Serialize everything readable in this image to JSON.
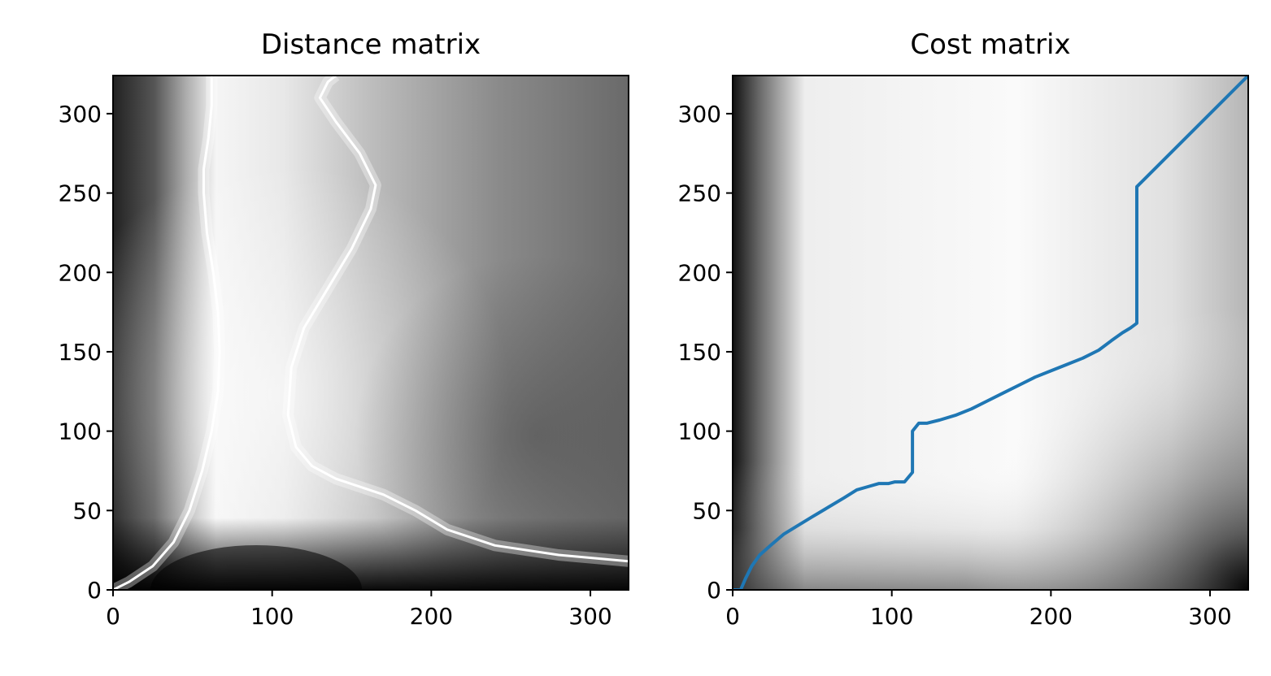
{
  "chart_data": [
    {
      "type": "heatmap",
      "title": "Distance matrix",
      "colormap": "gray",
      "xlim": [
        0,
        324
      ],
      "ylim": [
        0,
        324
      ],
      "xticks": [
        0,
        100,
        200,
        300
      ],
      "yticks": [
        0,
        50,
        100,
        150,
        200,
        250,
        300
      ],
      "xticklabels": [
        "0",
        "100",
        "200",
        "300"
      ],
      "yticklabels": [
        "0",
        "50",
        "100",
        "150",
        "200",
        "250",
        "300"
      ],
      "zero_distance_curves": [
        {
          "x": [
            0,
            10,
            25,
            38,
            48,
            56,
            62,
            66,
            67,
            66,
            63,
            59,
            57,
            57,
            60,
            62,
            62
          ],
          "y": [
            0,
            5,
            15,
            30,
            50,
            75,
            100,
            125,
            150,
            175,
            200,
            225,
            250,
            265,
            285,
            305,
            324
          ]
        },
        {
          "x": [
            324,
            280,
            240,
            210,
            190,
            170,
            140,
            125,
            115,
            110,
            112,
            120,
            135,
            150,
            162,
            165,
            155,
            140,
            130,
            135,
            140
          ],
          "y": [
            18,
            22,
            28,
            38,
            50,
            60,
            70,
            78,
            90,
            110,
            140,
            165,
            190,
            215,
            240,
            255,
            275,
            295,
            310,
            320,
            324
          ]
        }
      ]
    },
    {
      "type": "heatmap",
      "title": "Cost matrix",
      "colormap": "gray",
      "xlim": [
        0,
        324
      ],
      "ylim": [
        0,
        324
      ],
      "xticks": [
        0,
        100,
        200,
        300
      ],
      "yticks": [
        0,
        50,
        100,
        150,
        200,
        250,
        300
      ],
      "xticklabels": [
        "0",
        "100",
        "200",
        "300"
      ],
      "yticklabels": [
        "0",
        "50",
        "100",
        "150",
        "200",
        "250",
        "300"
      ],
      "path_color": "#1f77b4",
      "warping_path": {
        "x": [
          0,
          5,
          8,
          12,
          17,
          25,
          32,
          40,
          50,
          60,
          70,
          78,
          85,
          92,
          98,
          102,
          108,
          113,
          113,
          117,
          122,
          130,
          140,
          150,
          160,
          170,
          180,
          190,
          200,
          210,
          220,
          230,
          238,
          245,
          250,
          254,
          254,
          324
        ],
        "y": [
          0,
          0,
          7,
          15,
          22,
          29,
          35,
          40,
          46,
          52,
          58,
          63,
          65,
          67,
          67,
          68,
          68,
          74,
          100,
          105,
          105,
          107,
          110,
          114,
          119,
          124,
          129,
          134,
          138,
          142,
          146,
          151,
          157,
          162,
          165,
          168,
          254,
          324
        ]
      }
    }
  ]
}
